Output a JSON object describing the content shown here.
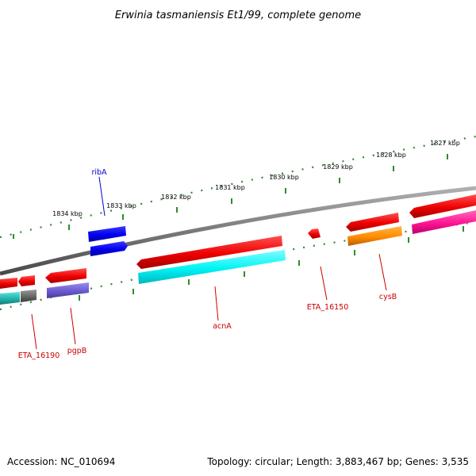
{
  "title": "Erwinia tasmaniensis Et1/99, complete genome",
  "footer": {
    "accession": "Accession: NC_010694",
    "summary": "Topology: circular; Length: 3,883,467 bp; Genes: 3,535"
  },
  "scale": {
    "ticks": [
      {
        "label": "1834 kbp"
      },
      {
        "label": "1833 kbp"
      },
      {
        "label": "1832 kbp"
      },
      {
        "label": "1831 kbp"
      },
      {
        "label": "1830 kbp"
      },
      {
        "label": "1829 kbp"
      },
      {
        "label": "1828 kbp"
      },
      {
        "label": "1827 kbp"
      }
    ]
  },
  "gene_labels": [
    {
      "name": "ribA",
      "color": "#0000cc"
    },
    {
      "name": "ETA_16190",
      "color": "#cc0000"
    },
    {
      "name": "pgpB",
      "color": "#cc0000"
    },
    {
      "name": "acnA",
      "color": "#cc0000"
    },
    {
      "name": "ETA_16150",
      "color": "#cc0000"
    },
    {
      "name": "cysB",
      "color": "#cc0000"
    }
  ],
  "colors": {
    "backbone": "#808080",
    "tick": "#2e8b2e",
    "cds": "#ff0000",
    "rrna_blue": "#0000ff",
    "cyan": "#00ffff",
    "purple": "#6a5acd",
    "orange": "#ff8c00",
    "magenta": "#ff1493",
    "gray": "#666666",
    "teal": "#20b2aa"
  }
}
